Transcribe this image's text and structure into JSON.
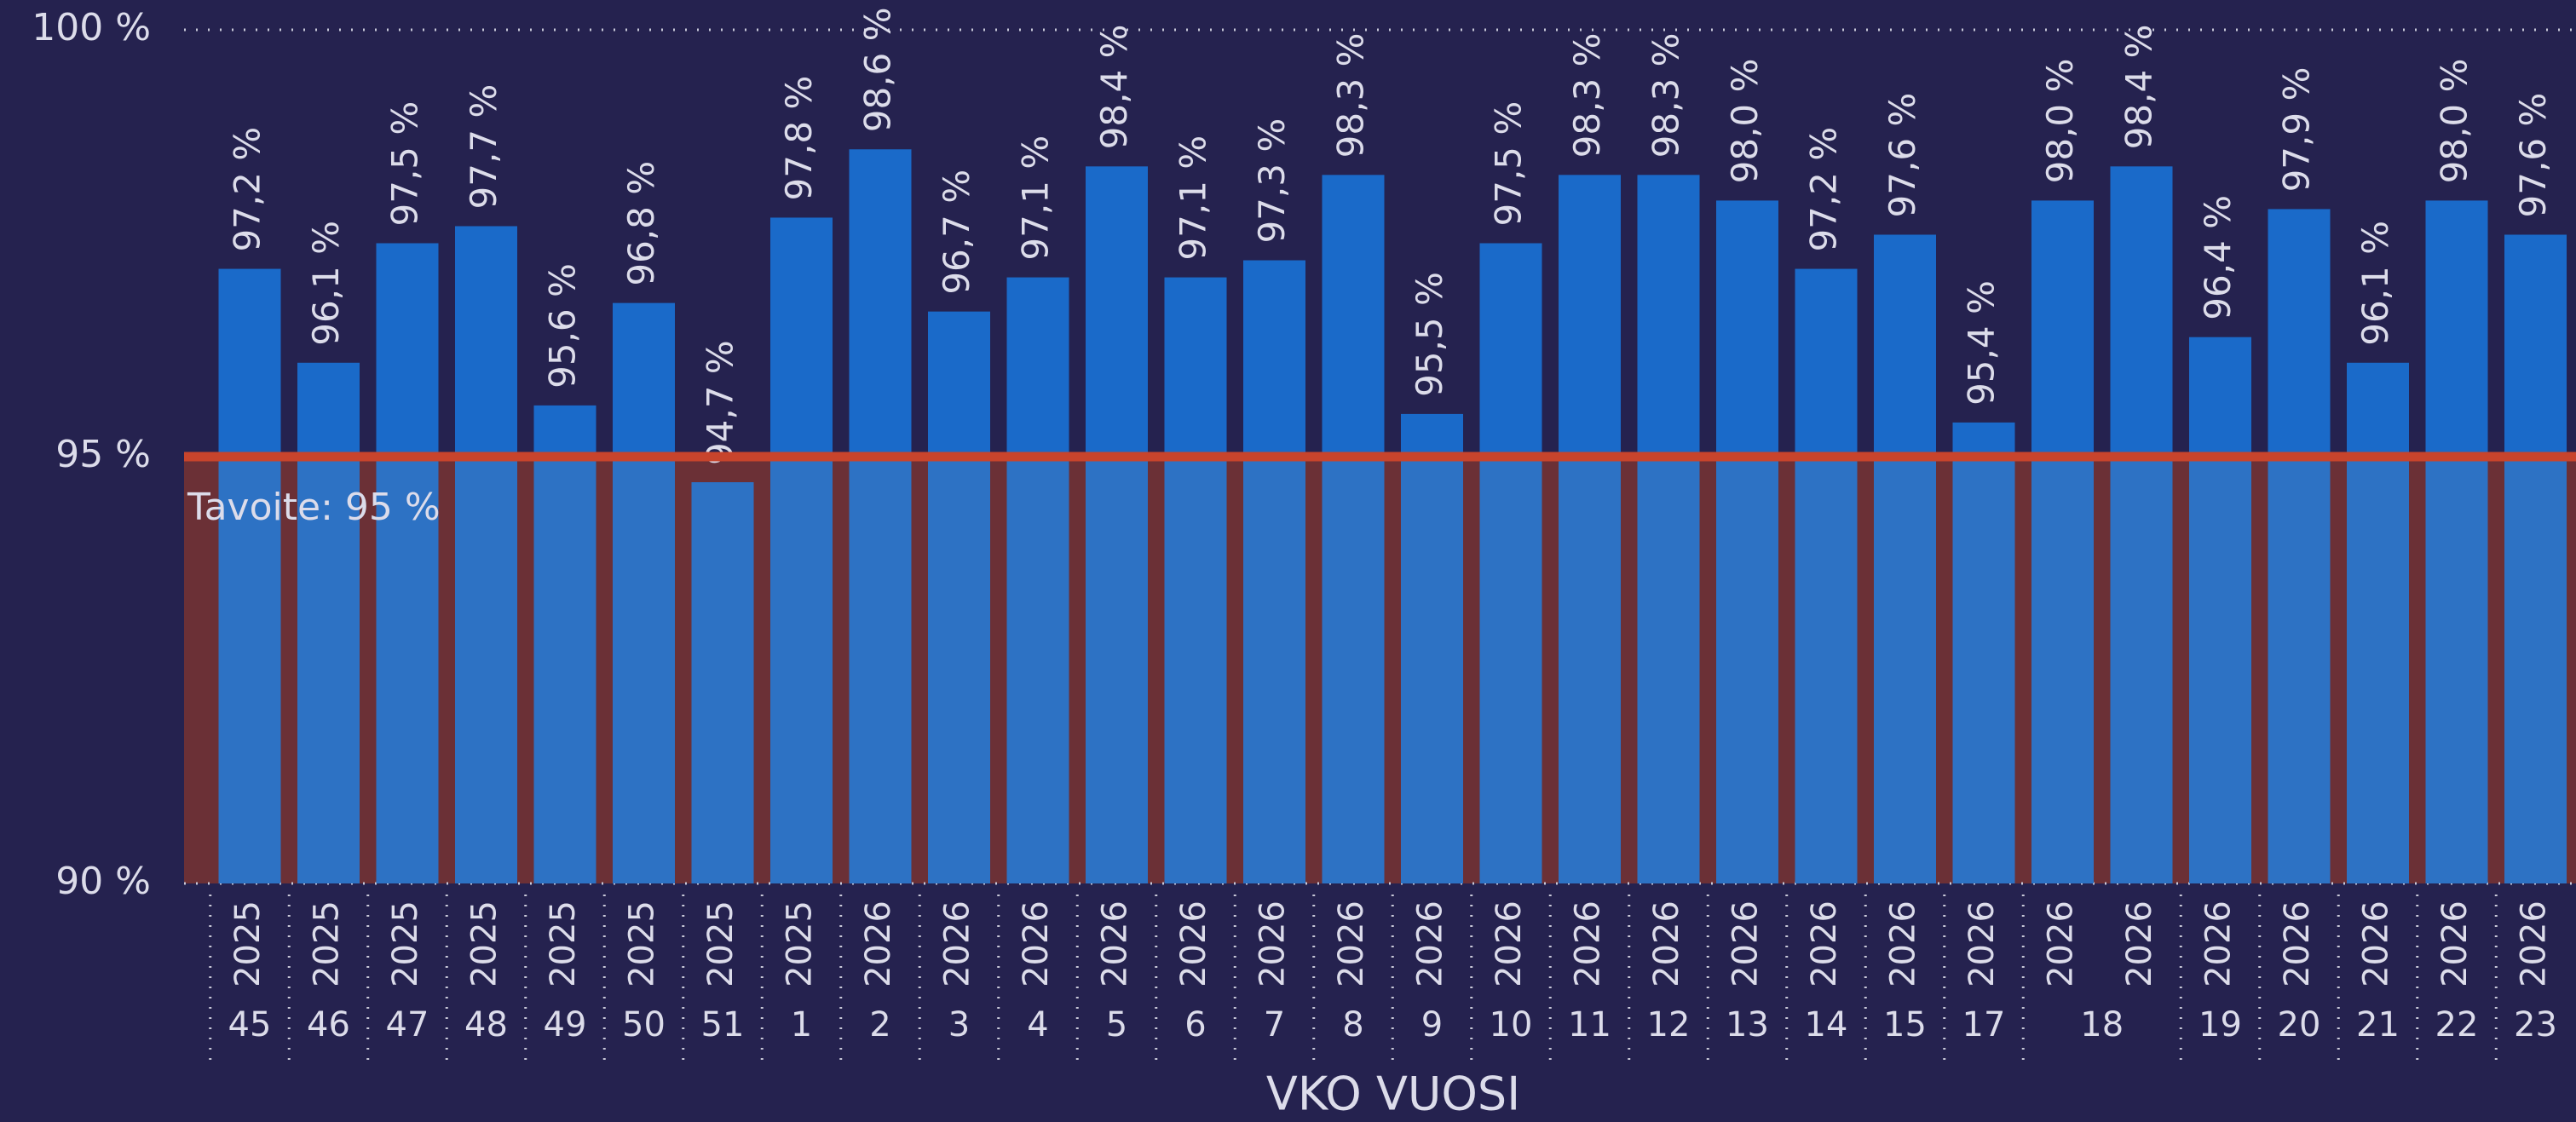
{
  "chart_data": {
    "type": "bar",
    "x_label": "VKO VUOSI",
    "categories": [
      "2025",
      "2025",
      "2025",
      "2025",
      "2025",
      "2025",
      "2025",
      "2025",
      "2026",
      "2026",
      "2026",
      "2026",
      "2026",
      "2026",
      "2026",
      "2026",
      "2026",
      "2026",
      "2026",
      "2026",
      "2026",
      "2026",
      "2026",
      "2026",
      "2026",
      "2026",
      "2026",
      "2026",
      "2026",
      "2026"
    ],
    "weeks": [
      "45",
      "46",
      "47",
      "48",
      "49",
      "50",
      "51",
      "1",
      "2",
      "3",
      "4",
      "5",
      "6",
      "7",
      "8",
      "9",
      "10",
      "11",
      "12",
      "13",
      "14",
      "15",
      "17",
      "18",
      null,
      "19",
      "20",
      "21",
      "22",
      "23"
    ],
    "values": [
      97.2,
      96.1,
      97.5,
      97.7,
      95.6,
      96.8,
      94.7,
      97.8,
      98.6,
      96.7,
      97.1,
      98.4,
      97.1,
      97.3,
      98.3,
      95.5,
      97.5,
      98.3,
      98.3,
      98.0,
      97.2,
      97.6,
      95.4,
      98.0,
      98.4,
      96.4,
      97.9,
      96.1,
      98.0,
      97.6
    ],
    "value_labels": [
      "97,2 %",
      "96,1 %",
      "97,5 %",
      "97,7 %",
      "95,6 %",
      "96,8 %",
      "94,7 %",
      "97,8 %",
      "98,6 %",
      "96,7 %",
      "97,1 %",
      "98,4 %",
      "97,1 %",
      "97,3 %",
      "98,3 %",
      "95,5 %",
      "97,5 %",
      "98,3 %",
      "98,3 %",
      "98,0 %",
      "97,2 %",
      "97,6 %",
      "95,4 %",
      "98,0 %",
      "98,4 %",
      "96,4 %",
      "97,9 %",
      "96,1 %",
      "98,0 %",
      "97,6 %"
    ],
    "color": "#1a6ac9",
    "ylim": [
      90,
      100
    ],
    "yticks": [
      {
        "value": 90,
        "label": "90 %"
      },
      {
        "value": 95,
        "label": "95 %"
      },
      {
        "value": 100,
        "label": "100 %"
      }
    ],
    "target": {
      "value": 95,
      "label": "Tavoite: 95 %",
      "color": "#c8442c"
    }
  }
}
